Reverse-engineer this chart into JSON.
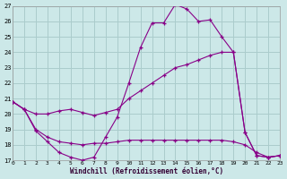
{
  "xlabel": "Windchill (Refroidissement éolien,°C)",
  "background_color": "#cce8e8",
  "grid_color": "#aacccc",
  "line_color": "#880088",
  "xlim": [
    0,
    23
  ],
  "ylim": [
    17,
    27
  ],
  "xticks": [
    0,
    1,
    2,
    3,
    4,
    5,
    6,
    7,
    8,
    9,
    10,
    11,
    12,
    13,
    14,
    15,
    16,
    17,
    18,
    19,
    20,
    21,
    22,
    23
  ],
  "yticks": [
    17,
    18,
    19,
    20,
    21,
    22,
    23,
    24,
    25,
    26,
    27
  ],
  "s1_x": [
    0,
    1,
    2,
    3,
    4,
    5,
    6,
    7,
    8,
    9,
    10,
    11,
    12,
    13,
    14,
    15,
    16,
    17,
    18,
    19,
    20,
    21,
    22,
    23
  ],
  "s1_y": [
    20.8,
    20.3,
    18.9,
    18.2,
    17.5,
    17.2,
    17.0,
    17.2,
    18.5,
    19.8,
    22.0,
    24.3,
    25.9,
    25.9,
    27.1,
    26.8,
    26.0,
    26.1,
    25.0,
    24.0,
    18.8,
    17.3,
    17.2,
    17.3
  ],
  "s2_x": [
    0,
    1,
    2,
    3,
    4,
    5,
    6,
    7,
    8,
    9,
    10,
    11,
    12,
    13,
    14,
    15,
    16,
    17,
    18,
    19,
    20,
    21,
    22,
    23
  ],
  "s2_y": [
    20.8,
    20.3,
    20.0,
    20.0,
    20.2,
    20.3,
    20.1,
    19.9,
    20.1,
    20.3,
    21.0,
    21.5,
    22.0,
    22.5,
    23.0,
    23.2,
    23.5,
    23.8,
    24.0,
    24.0,
    18.8,
    17.3,
    17.2,
    17.3
  ],
  "s3_x": [
    0,
    1,
    2,
    3,
    4,
    5,
    6,
    7,
    8,
    9,
    10,
    11,
    12,
    13,
    14,
    15,
    16,
    17,
    18,
    19,
    20,
    21,
    22,
    23
  ],
  "s3_y": [
    20.8,
    20.3,
    19.0,
    18.5,
    18.2,
    18.1,
    18.0,
    18.1,
    18.1,
    18.2,
    18.3,
    18.3,
    18.3,
    18.3,
    18.3,
    18.3,
    18.3,
    18.3,
    18.3,
    18.2,
    18.0,
    17.5,
    17.2,
    17.3
  ]
}
